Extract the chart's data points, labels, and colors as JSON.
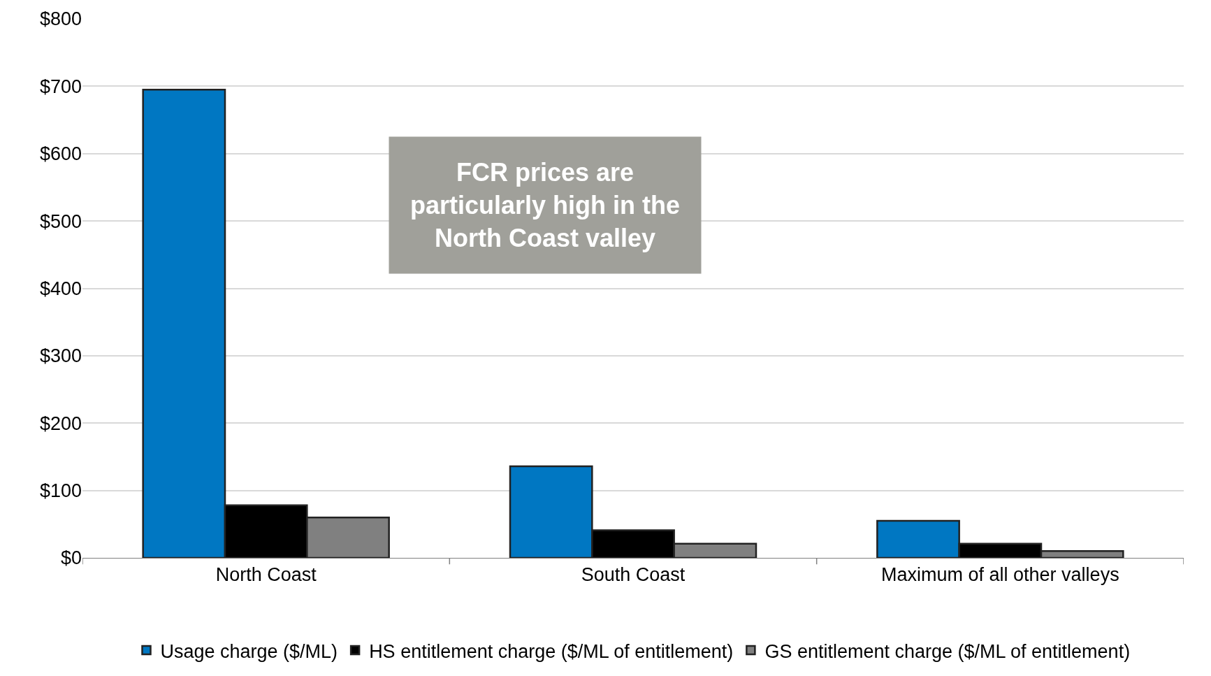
{
  "chart_data": {
    "type": "bar",
    "categories": [
      "North Coast",
      "South Coast",
      "Maximum of all other valleys"
    ],
    "series": [
      {
        "name": "Usage charge ($/ML)",
        "color": "#0077c2",
        "values": [
          695,
          136,
          55
        ]
      },
      {
        "name": "HS entitlement charge ($/ML of entitlement)",
        "color": "#000000",
        "values": [
          78,
          41,
          21
        ]
      },
      {
        "name": "GS entitlement charge ($/ML of entitlement)",
        "color": "#808080",
        "values": [
          60,
          21,
          10
        ]
      }
    ],
    "ylim": [
      0,
      800
    ],
    "yticks": [
      {
        "value": 0,
        "label": "$0"
      },
      {
        "value": 100,
        "label": "$100"
      },
      {
        "value": 200,
        "label": "$200"
      },
      {
        "value": 300,
        "label": "$300"
      },
      {
        "value": 400,
        "label": "$400"
      },
      {
        "value": 500,
        "label": "$500"
      },
      {
        "value": 600,
        "label": "$600"
      },
      {
        "value": 700,
        "label": "$700"
      },
      {
        "value": 800,
        "label": "$800"
      }
    ],
    "grid": "y",
    "legend": "bottom",
    "annotations": [
      "FCR prices are\nparticularly high in the\nNorth Coast valley"
    ]
  }
}
